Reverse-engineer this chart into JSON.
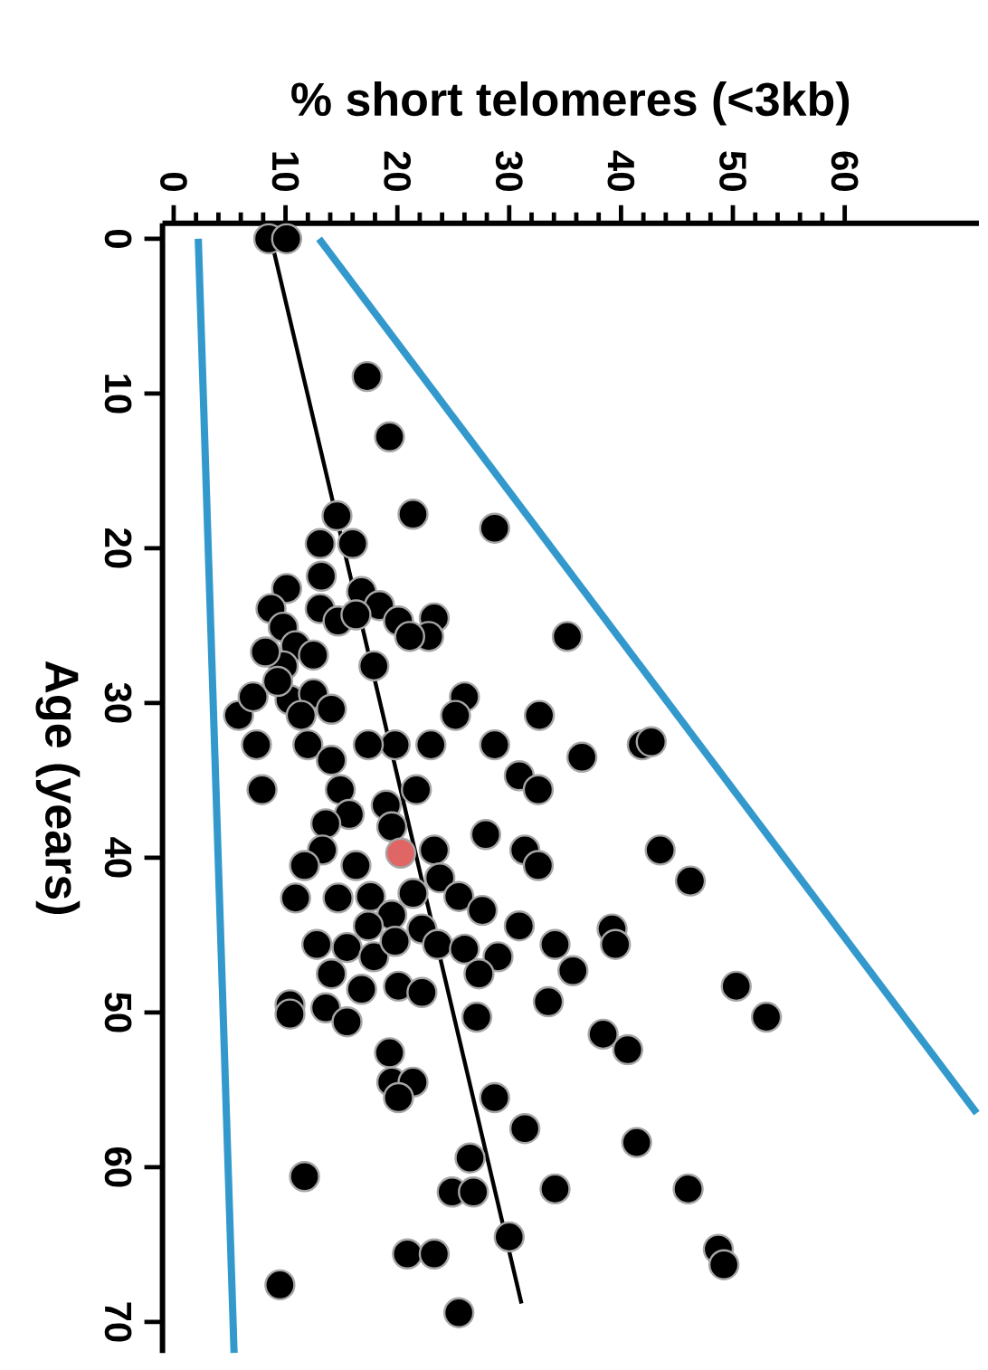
{
  "chart_data": {
    "type": "scatter",
    "xlabel": "% short telomeres (<3kb)",
    "ylabel": "Age (years)",
    "xlim": [
      -1,
      72
    ],
    "ylim": [
      72,
      -1
    ],
    "xticks": [
      0,
      10,
      20,
      30,
      40,
      50,
      60
    ],
    "yticks": [
      0,
      10,
      20,
      30,
      40,
      50,
      60,
      70
    ],
    "grid": false,
    "series": [
      {
        "color": "#000000",
        "marker": "circle",
        "values": [
          0,
          0,
          8.9,
          12.8,
          17.8,
          18.7,
          25.7,
          17.9,
          19.7,
          19.7,
          22.6,
          21.8,
          22.8,
          23.7,
          24.7,
          24.5,
          25.7,
          25.7,
          23.9,
          25.1,
          23.9,
          24.7,
          26.3,
          26.9,
          27.6,
          27.6,
          24.3,
          26.7,
          30.8,
          29.6,
          29.8,
          29.4,
          30.4,
          30.8,
          28.6,
          29.6,
          30.8,
          30.8,
          32.7,
          33.5,
          32.7,
          32.7,
          32.7,
          32.7,
          32.7,
          32.7,
          33.7,
          34.7,
          35.6,
          35.6,
          35.6,
          35.6,
          36.6,
          37.2,
          37.8,
          38,
          38.5,
          39.5,
          40.5,
          39.5,
          39.5,
          40.5,
          40.5,
          41.3,
          42.6,
          42.6,
          42.5,
          42.3,
          42.5,
          43.4,
          43.7,
          44.6,
          44.4,
          44.4,
          45.6,
          44.6,
          45.6,
          45.6,
          45.8,
          46.4,
          45.4,
          45.6,
          45.9,
          46.4,
          47.5,
          47.3,
          47.5,
          48.5,
          48.3,
          48.7,
          49.5,
          49.7,
          49.3,
          50.3,
          50.6,
          50.1,
          52.6,
          54.5,
          54.5,
          55.5,
          55.5,
          57.5,
          59.4,
          60.6,
          61.6,
          61.6,
          61.4,
          64.5,
          65.6,
          65.6,
          67.6,
          69.4,
          51.4,
          52.4,
          58.4,
          39.5,
          41.5,
          48.3,
          50.3,
          61.4,
          65.3,
          66.3,
          32.5
        ],
        "x": [
          8.5,
          10.1,
          17.3,
          19.3,
          21.4,
          28.7,
          35.2,
          14.6,
          13.1,
          16,
          10.1,
          13.2,
          16.8,
          18.4,
          20.1,
          23.3,
          22.8,
          21.1,
          8.7,
          9.8,
          13.1,
          14.7,
          10.9,
          12.5,
          9.8,
          17.9,
          16.3,
          8.2,
          5.8,
          7.1,
          10.4,
          12.5,
          14.1,
          11.4,
          9.3,
          26,
          25.2,
          32.7,
          41.9,
          36.5,
          28.7,
          23,
          19.8,
          17.4,
          12,
          7.4,
          14.1,
          30.9,
          32.6,
          7.9,
          14.9,
          21.7,
          19,
          15.7,
          13.6,
          19.5,
          27.9,
          31.4,
          32.6,
          23.3,
          13.3,
          11.7,
          16.3,
          23.8,
          10.9,
          14.7,
          17.6,
          21.4,
          25.5,
          27.6,
          19.5,
          22.2,
          17.4,
          30.9,
          34.1,
          39.2,
          39.5,
          12.8,
          15.5,
          17.9,
          19.8,
          23.6,
          26,
          29,
          27.3,
          35.7,
          14.1,
          16.8,
          20.1,
          22.2,
          10.4,
          13.6,
          33.5,
          27.1,
          15.5,
          10.4,
          19.3,
          19.5,
          21.4,
          20.1,
          28.7,
          31.4,
          26.5,
          11.7,
          24.9,
          26.8,
          34.1,
          30,
          20.9,
          23.3,
          9.5,
          25.5,
          38.4,
          40.6,
          41.4,
          43.5,
          46.2,
          50.3,
          53,
          46,
          48.7,
          49.2,
          42.7
        ]
      },
      {
        "color": "#e06666",
        "marker": "circle",
        "values": [
          39.7
        ],
        "x": [
          20.3
        ]
      },
      {
        "type": "line",
        "color": "#000000",
        "marker": "none",
        "values": [
          0,
          68.8
        ],
        "x": [
          8.7,
          31.1
        ]
      },
      {
        "type": "line",
        "color": "#3399cc",
        "marker": "none",
        "values": [
          0,
          56.5
        ],
        "x": [
          13,
          71.8
        ]
      },
      {
        "type": "line",
        "color": "#3399cc",
        "marker": "none",
        "values": [
          0,
          72
        ],
        "x": [
          2.2,
          5.4
        ]
      }
    ]
  }
}
